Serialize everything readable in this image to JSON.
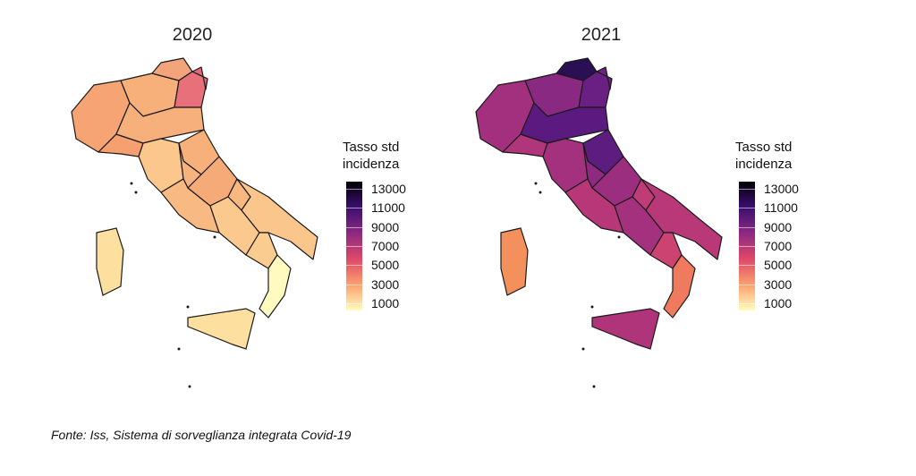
{
  "maps": [
    {
      "title": "2020"
    },
    {
      "title": "2021"
    }
  ],
  "legend": {
    "title_line1": "Tasso std",
    "title_line2": "incidenza",
    "ticks": [
      "13000",
      "11000",
      "9000",
      "7000",
      "5000",
      "3000",
      "1000"
    ],
    "colors": {
      "low": "#fffdbf",
      "mid_low": "#fca06e",
      "mid": "#de4968",
      "mid_high": "#8c2981",
      "high": "#3b0f70",
      "max": "#000004"
    }
  },
  "source": "Fonte: Iss, Sistema di sorveglianza integrata Covid-19"
}
